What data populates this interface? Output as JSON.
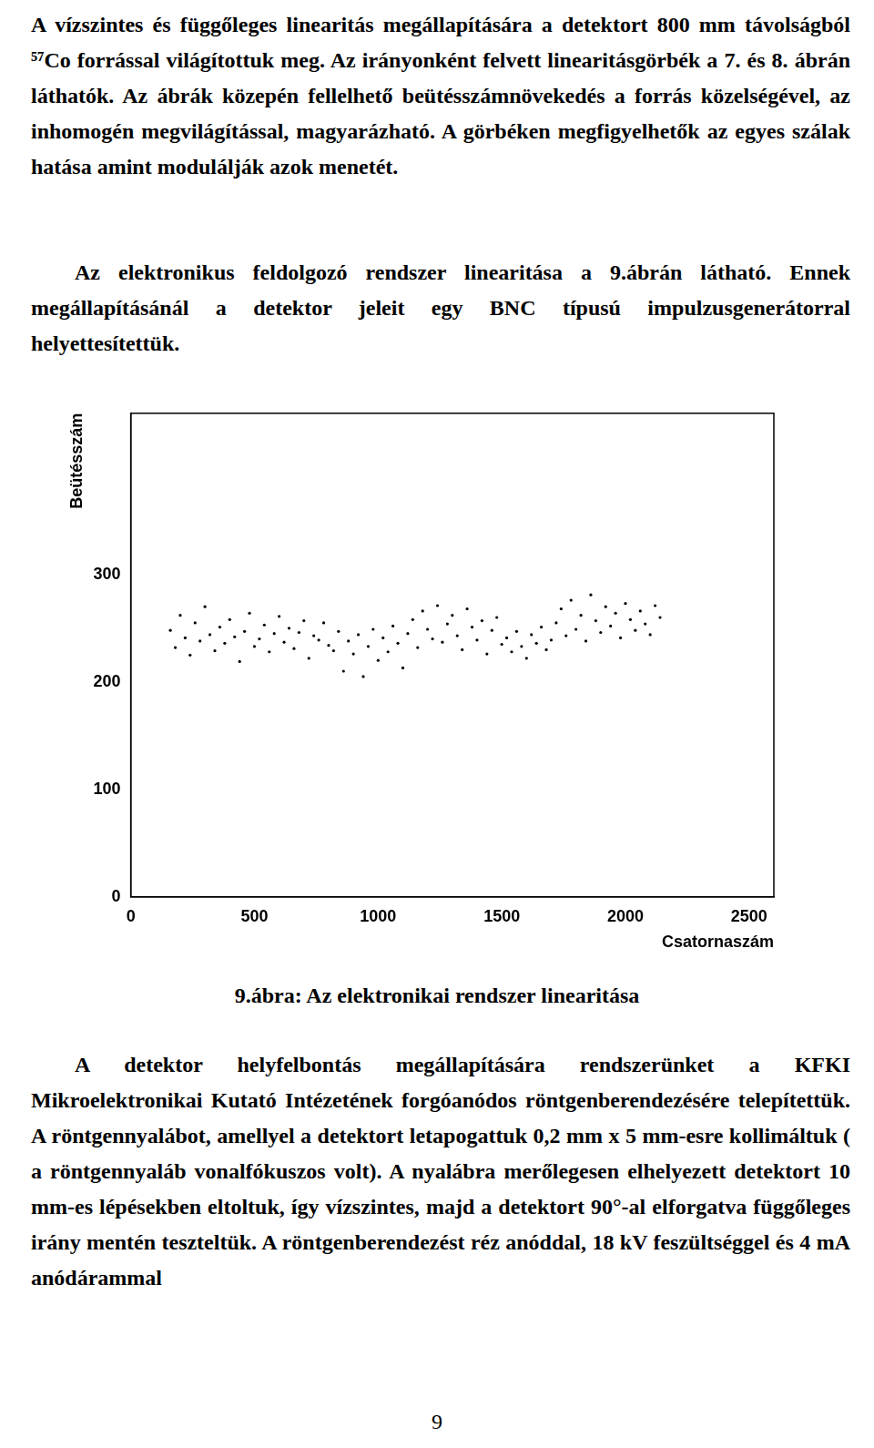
{
  "paragraphs_before": [
    "A vízszintes és függőleges linearitás megállapítására a detektort 800 mm távolságból ⁵⁷Co forrással világítottuk meg. Az irányonként felvett linearitásgörbék a 7. és 8. ábrán láthatók. Az ábrák közepén fellelhető beütésszámnövekedés a forrás közelségével, az inhomogén megvilágítással, magyarázható. A görbéken megfigyelhetők az egyes szálak hatása amint modulálják azok menetét.",
    "Az elektronikus feldolgozó rendszer linearitása a 9.ábrán látható. Ennek megállapításánál a detektor jeleit egy BNC típusú impulzusgenerátorral helyettesítettük."
  ],
  "chart_data": {
    "type": "scatter",
    "title": "9.ábra: Az elektronikai rendszer linearitása",
    "x_label": "Csatornaszám",
    "y_label": "Beütésszám",
    "color": "#000000",
    "marker": "dot",
    "grid": false,
    "xlim": [
      0,
      2600
    ],
    "ylim": [
      0,
      450
    ],
    "xticks": [
      0,
      500,
      1000,
      1500,
      2000,
      2500
    ],
    "yticks": [
      0,
      100,
      200,
      300
    ],
    "x": [
      160,
      180,
      200,
      220,
      240,
      260,
      280,
      300,
      320,
      340,
      360,
      380,
      400,
      420,
      440,
      460,
      480,
      500,
      520,
      540,
      560,
      580,
      600,
      620,
      640,
      660,
      680,
      700,
      720,
      740,
      760,
      780,
      800,
      820,
      840,
      860,
      880,
      900,
      920,
      940,
      960,
      980,
      1000,
      1020,
      1040,
      1060,
      1080,
      1100,
      1120,
      1140,
      1160,
      1180,
      1200,
      1220,
      1240,
      1260,
      1280,
      1300,
      1320,
      1340,
      1360,
      1380,
      1400,
      1420,
      1440,
      1460,
      1480,
      1500,
      1520,
      1540,
      1560,
      1580,
      1600,
      1620,
      1640,
      1660,
      1680,
      1700,
      1720,
      1740,
      1760,
      1780,
      1800,
      1820,
      1840,
      1860,
      1880,
      1900,
      1920,
      1940,
      1960,
      1980,
      2000,
      2020,
      2040,
      2060,
      2080,
      2100,
      2120,
      2140
    ],
    "values": [
      248,
      232,
      262,
      241,
      225,
      255,
      238,
      270,
      244,
      229,
      251,
      236,
      258,
      242,
      219,
      247,
      264,
      233,
      240,
      253,
      228,
      245,
      261,
      237,
      250,
      231,
      246,
      257,
      222,
      243,
      239,
      255,
      234,
      229,
      247,
      210,
      238,
      226,
      244,
      205,
      233,
      249,
      220,
      241,
      228,
      252,
      236,
      213,
      245,
      258,
      232,
      266,
      249,
      240,
      271,
      237,
      254,
      262,
      243,
      230,
      268,
      251,
      239,
      257,
      226,
      248,
      260,
      235,
      241,
      228,
      247,
      233,
      222,
      244,
      236,
      251,
      230,
      239,
      255,
      268,
      243,
      276,
      249,
      262,
      238,
      281,
      257,
      246,
      270,
      252,
      264,
      241,
      273,
      258,
      248,
      266,
      254,
      244,
      271,
      260
    ]
  },
  "paragraphs_after": [
    "A detektor helyfelbontás megállapítására rendszerünket a KFKI Mikroelektronikai Kutató Intézetének forgóanódos röntgenberendezésére telepítettük. A röntgennyalábot, amellyel a detektort letapogattuk 0,2 mm x 5 mm-esre kollimáltuk ( a röntgennyaláb vonalfókuszos volt). A nyalábra merőlegesen elhelyezett detektort 10 mm-es lépésekben eltoltuk, így vízszintes, majd a detektort 90°-al elforgatva függőleges irány mentén teszteltük. A röntgenberendezést réz anóddal, 18 kV feszültséggel és 4 mA anódárammal"
  ],
  "page_number": "9"
}
